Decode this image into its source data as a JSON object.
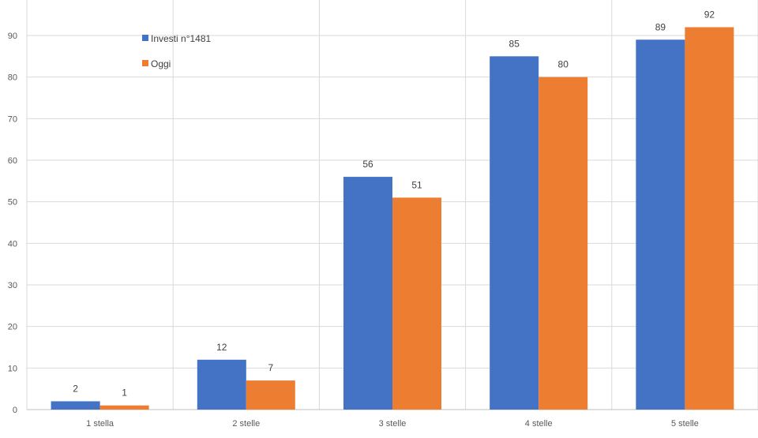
{
  "chart_data": {
    "type": "bar",
    "categories": [
      "1 stella",
      "2 stelle",
      "3 stelle",
      "4 stelle",
      "5 stelle"
    ],
    "series": [
      {
        "name": "Investi n°1481",
        "values": [
          2,
          12,
          56,
          85,
          89
        ],
        "color": "#4472C4"
      },
      {
        "name": "Oggi",
        "values": [
          1,
          7,
          51,
          80,
          92
        ],
        "color": "#ED7D31"
      }
    ],
    "title": "",
    "xlabel": "",
    "ylabel": "",
    "ylim": [
      0,
      90
    ],
    "yticks": [
      0,
      10,
      20,
      30,
      40,
      50,
      60,
      70,
      80,
      90
    ],
    "grid": {
      "horizontal": true,
      "vertical": true
    },
    "data_labels": true,
    "legend_position": "top-left"
  }
}
